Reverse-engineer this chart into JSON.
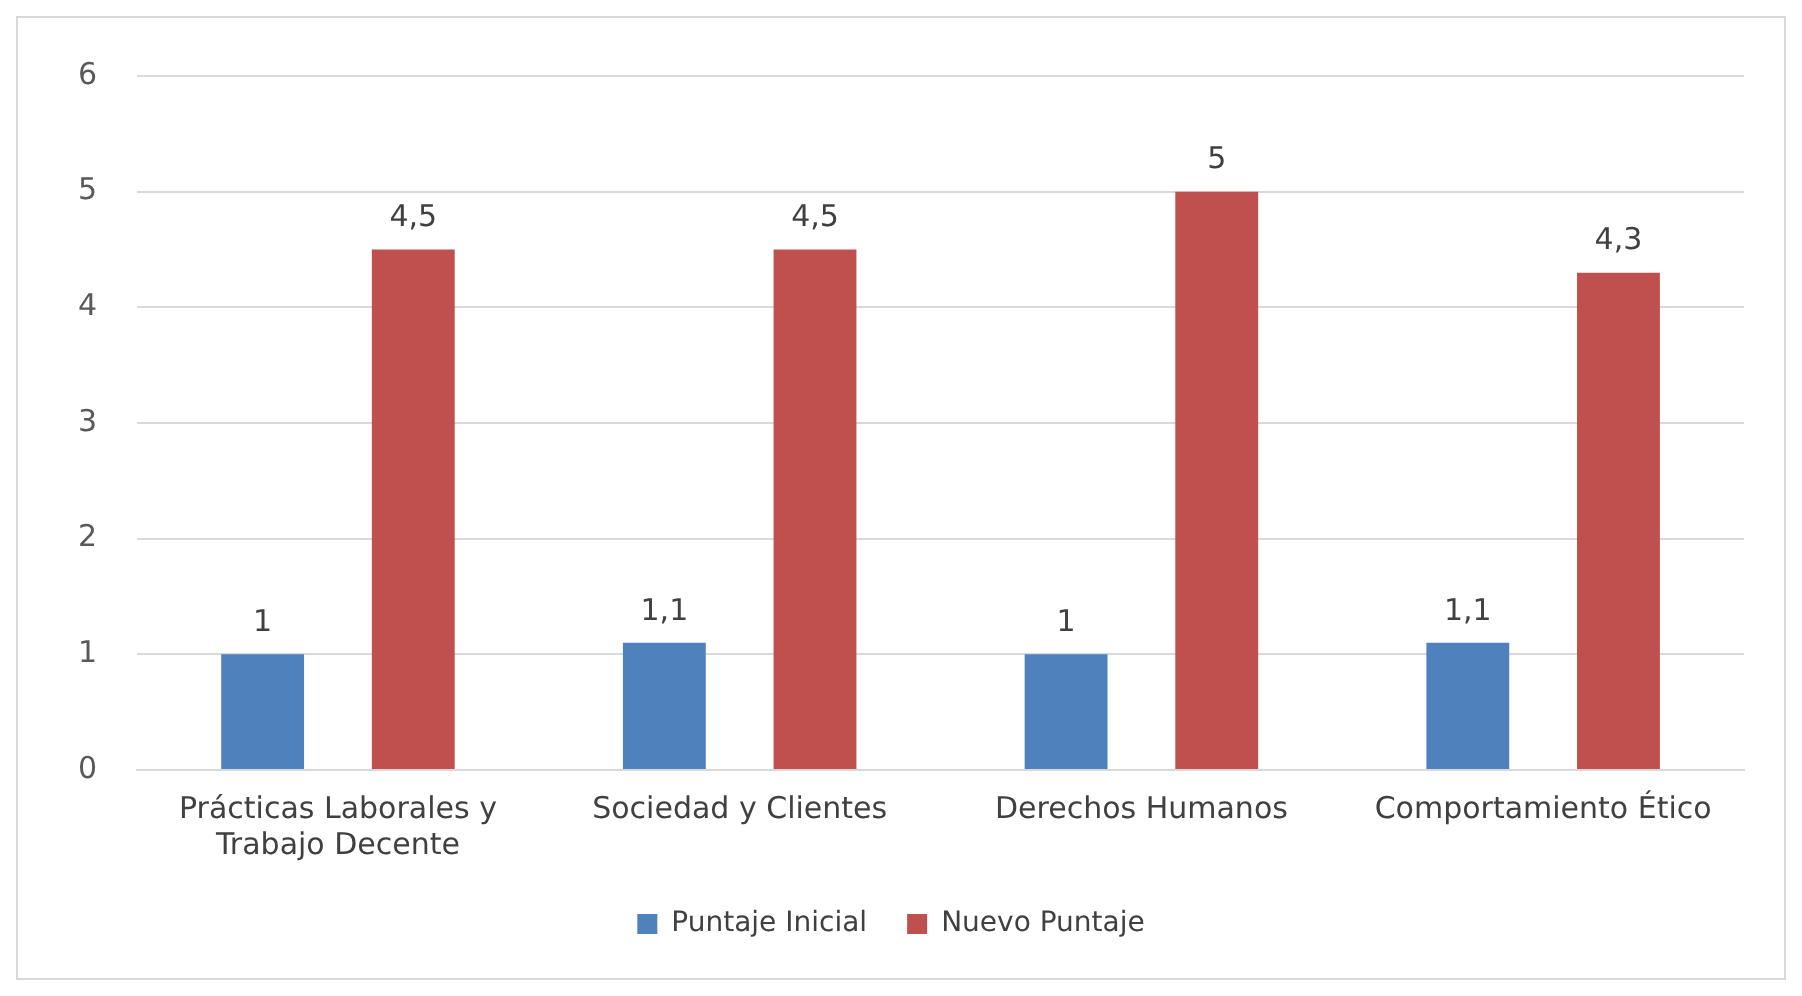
{
  "chart_data": {
    "type": "bar",
    "categories": [
      "Prácticas Laborales y Trabajo Decente",
      "Sociedad y Clientes",
      "Derechos Humanos",
      "Comportamiento Ético"
    ],
    "series": [
      {
        "name": "Puntaje Inicial",
        "color": "#4f81bd",
        "values": [
          1,
          1.1,
          1,
          1.1
        ],
        "value_labels": [
          "1",
          "1,1",
          "1",
          "1,1"
        ]
      },
      {
        "name": "Nuevo Puntaje",
        "color": "#c0504d",
        "values": [
          4.5,
          4.5,
          5,
          4.3
        ],
        "value_labels": [
          "4,5",
          "4,5",
          "5",
          "4,3"
        ]
      }
    ],
    "ylim": [
      0,
      6
    ],
    "yticks": [
      0,
      1,
      2,
      3,
      4,
      5,
      6
    ],
    "grid": "y",
    "legend": "bottom"
  }
}
